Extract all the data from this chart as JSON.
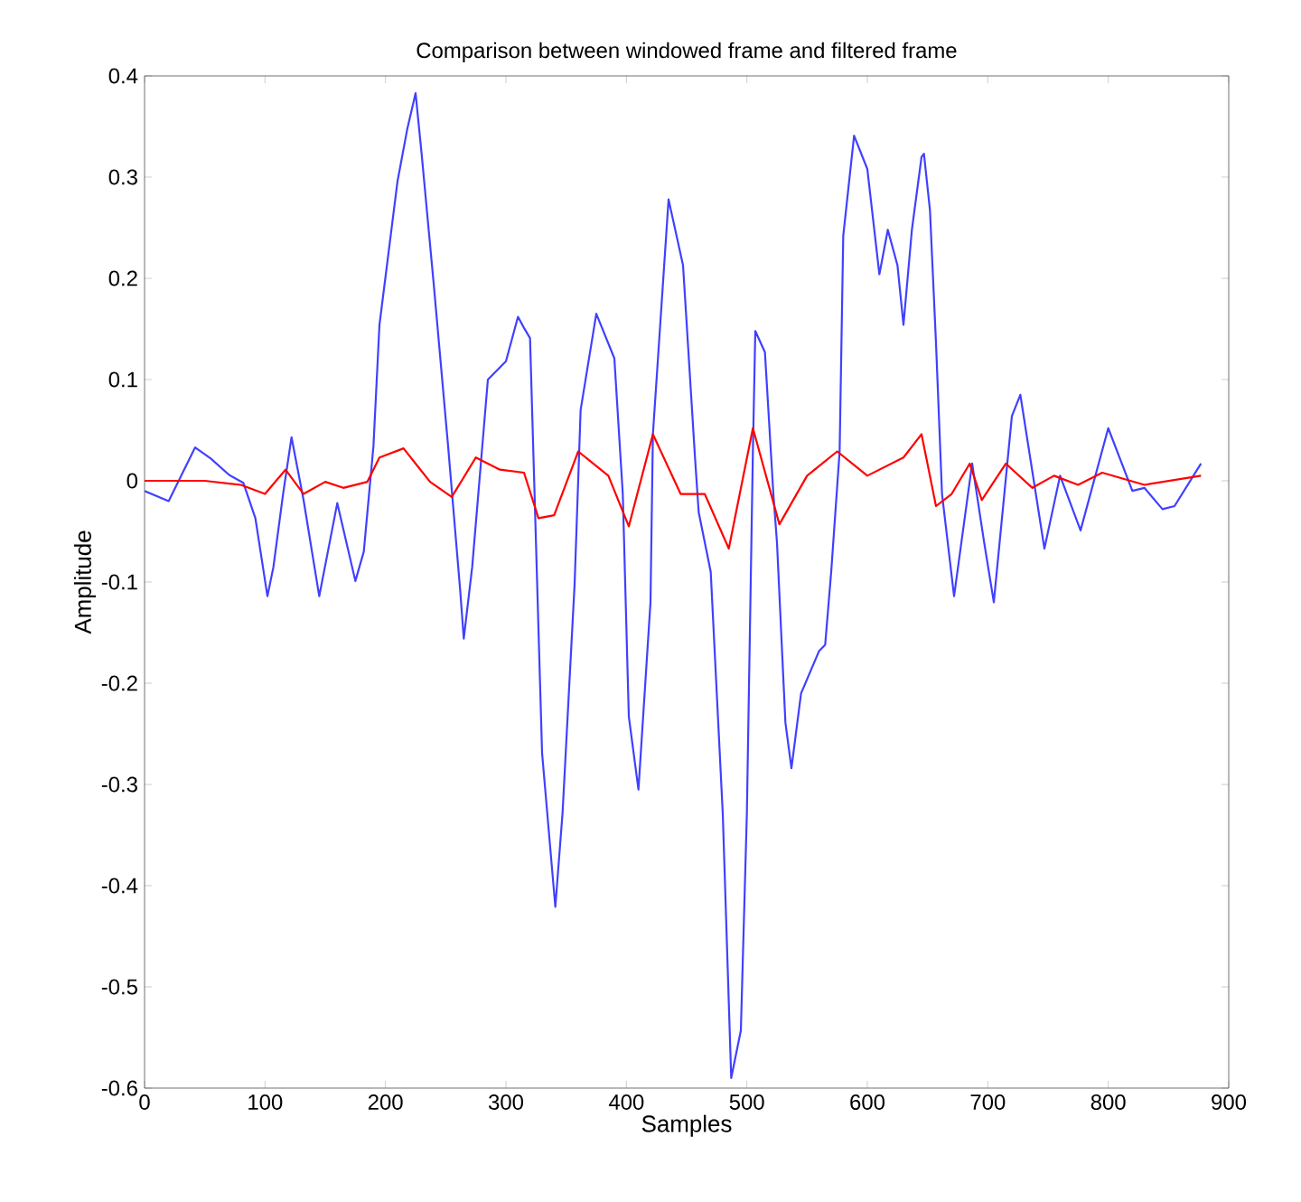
{
  "chart_data": {
    "type": "line",
    "title": "Comparison between windowed frame and filtered frame",
    "xlabel": "Samples",
    "ylabel": "Amplitude",
    "xlim": [
      0,
      900
    ],
    "ylim": [
      -0.6,
      0.4
    ],
    "xticks": [
      0,
      100,
      200,
      300,
      400,
      500,
      600,
      700,
      800,
      900
    ],
    "yticks": [
      -0.6,
      -0.5,
      -0.4,
      -0.3,
      -0.2,
      -0.1,
      0,
      0.1,
      0.2,
      0.3,
      0.4
    ],
    "marker": "none",
    "line_style": "solid",
    "series": [
      {
        "color": "#4040ff",
        "x": [
          0,
          20,
          42,
          55,
          70,
          82,
          92,
          102,
          107,
          115,
          122,
          132,
          145,
          160,
          175,
          182,
          190,
          195,
          210,
          218,
          225,
          230,
          240,
          252,
          262,
          265,
          272,
          285,
          300,
          310,
          315,
          320,
          330,
          341,
          347,
          357,
          362,
          375,
          390,
          397,
          402,
          410,
          420,
          422,
          435,
          447,
          457,
          460,
          470,
          480,
          487,
          495,
          500,
          505,
          507,
          515,
          522,
          525,
          532,
          537,
          545,
          560,
          565,
          570,
          577,
          580,
          589,
          600,
          610,
          617,
          625,
          630,
          637,
          645,
          647,
          652,
          657,
          662,
          672,
          687,
          697,
          705,
          720,
          727,
          747,
          760,
          777,
          800,
          820,
          830,
          845,
          855,
          877
        ],
        "values": [
          -0.01,
          -0.02,
          0.033,
          0.022,
          0.006,
          -0.002,
          -0.037,
          -0.114,
          -0.085,
          -0.013,
          0.043,
          -0.019,
          -0.114,
          -0.022,
          -0.099,
          -0.07,
          0.034,
          0.154,
          0.296,
          0.347,
          0.383,
          0.323,
          0.195,
          0.034,
          -0.108,
          -0.156,
          -0.085,
          0.1,
          0.118,
          0.162,
          0.151,
          0.141,
          -0.269,
          -0.421,
          -0.328,
          -0.102,
          0.07,
          0.165,
          0.121,
          -0.013,
          -0.233,
          -0.305,
          -0.12,
          0.046,
          0.278,
          0.213,
          0.022,
          -0.031,
          -0.09,
          -0.329,
          -0.59,
          -0.543,
          -0.329,
          0.029,
          0.148,
          0.127,
          -0.013,
          -0.061,
          -0.239,
          -0.284,
          -0.21,
          -0.168,
          -0.162,
          -0.09,
          0.029,
          0.242,
          0.341,
          0.308,
          0.204,
          0.248,
          0.213,
          0.154,
          0.248,
          0.32,
          0.323,
          0.267,
          0.136,
          -0.013,
          -0.114,
          0.017,
          -0.061,
          -0.12,
          0.064,
          0.085,
          -0.067,
          0.005,
          -0.049,
          0.052,
          -0.01,
          -0.007,
          -0.028,
          -0.025,
          0.017
        ]
      },
      {
        "color": "#ff0000",
        "x": [
          0,
          50,
          80,
          100,
          117,
          132,
          150,
          165,
          185,
          195,
          215,
          225,
          237,
          255,
          275,
          295,
          315,
          327,
          340,
          360,
          385,
          402,
          422,
          445,
          465,
          485,
          505,
          527,
          550,
          575,
          600,
          630,
          645,
          657,
          670,
          685,
          695,
          715,
          737,
          755,
          775,
          795,
          830,
          877
        ],
        "values": [
          0,
          0,
          -0.004,
          -0.013,
          0.011,
          -0.013,
          -0.001,
          -0.007,
          -0.001,
          0.023,
          0.032,
          0.017,
          -0.001,
          -0.016,
          0.023,
          0.011,
          0.008,
          -0.037,
          -0.034,
          0.029,
          0.005,
          -0.045,
          0.046,
          -0.013,
          -0.013,
          -0.067,
          0.052,
          -0.043,
          0.005,
          0.029,
          0.005,
          0.023,
          0.046,
          -0.025,
          -0.013,
          0.017,
          -0.019,
          0.017,
          -0.007,
          0.005,
          -0.004,
          0.008,
          -0.004,
          0.005
        ]
      }
    ]
  }
}
